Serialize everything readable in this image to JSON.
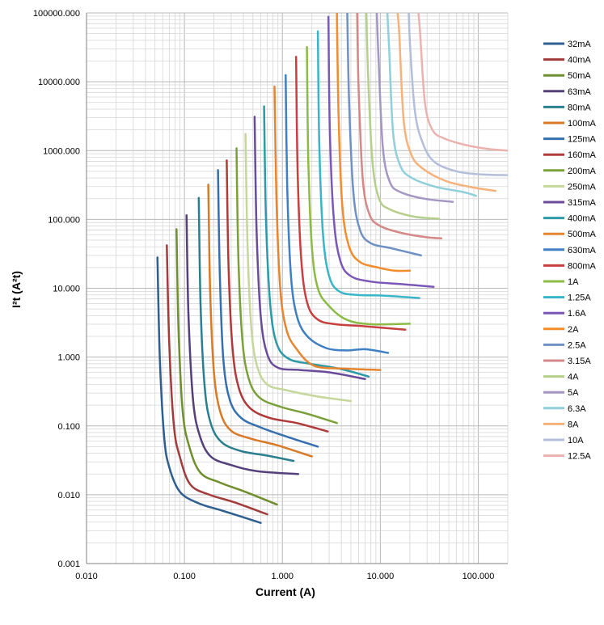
{
  "chart_data": {
    "type": "line",
    "xlabel": "Current (A)",
    "ylabel": "I²t (A²t)",
    "x_scale": "log",
    "y_scale": "log",
    "xlim": [
      0.01,
      200
    ],
    "ylim": [
      0.001,
      100000
    ],
    "x_ticks": [
      "0.010",
      "0.100",
      "1.000",
      "10.000",
      "100.000"
    ],
    "y_ticks": [
      "0.001",
      "0.010",
      "0.100",
      "1.000",
      "10.000",
      "100.000",
      "1000.000",
      "10000.000",
      "100000.000"
    ],
    "grid": true,
    "legend_position": "right",
    "series": [
      {
        "name": "32mA",
        "color": "#2f5f8f",
        "points": [
          [
            0.053,
            28
          ],
          [
            0.056,
            1.0
          ],
          [
            0.062,
            0.07
          ],
          [
            0.07,
            0.025
          ],
          [
            0.09,
            0.011
          ],
          [
            0.14,
            0.0075
          ],
          [
            0.25,
            0.0058
          ],
          [
            0.6,
            0.0039
          ]
        ]
      },
      {
        "name": "40mA",
        "color": "#a23b3b",
        "points": [
          [
            0.066,
            42
          ],
          [
            0.07,
            1.5
          ],
          [
            0.078,
            0.1
          ],
          [
            0.09,
            0.035
          ],
          [
            0.115,
            0.014
          ],
          [
            0.18,
            0.01
          ],
          [
            0.32,
            0.0078
          ],
          [
            0.7,
            0.0052
          ]
        ]
      },
      {
        "name": "50mA",
        "color": "#6f8f2f",
        "points": [
          [
            0.083,
            72
          ],
          [
            0.087,
            2.5
          ],
          [
            0.096,
            0.16
          ],
          [
            0.112,
            0.05
          ],
          [
            0.145,
            0.021
          ],
          [
            0.23,
            0.015
          ],
          [
            0.42,
            0.011
          ],
          [
            0.88,
            0.0072
          ]
        ]
      },
      {
        "name": "63mA",
        "color": "#54407a",
        "points": [
          [
            0.105,
            115
          ],
          [
            0.11,
            4
          ],
          [
            0.122,
            0.25
          ],
          [
            0.142,
            0.075
          ],
          [
            0.185,
            0.036
          ],
          [
            0.3,
            0.027
          ],
          [
            0.55,
            0.022
          ],
          [
            1.45,
            0.02
          ]
        ]
      },
      {
        "name": "80mA",
        "color": "#2a7f8f",
        "points": [
          [
            0.14,
            205
          ],
          [
            0.146,
            6
          ],
          [
            0.16,
            0.4
          ],
          [
            0.185,
            0.11
          ],
          [
            0.24,
            0.058
          ],
          [
            0.38,
            0.043
          ],
          [
            0.7,
            0.037
          ],
          [
            1.3,
            0.031
          ]
        ]
      },
      {
        "name": "100mA",
        "color": "#d97a26",
        "points": [
          [
            0.175,
            320
          ],
          [
            0.183,
            9
          ],
          [
            0.2,
            0.6
          ],
          [
            0.232,
            0.16
          ],
          [
            0.3,
            0.085
          ],
          [
            0.48,
            0.065
          ],
          [
            0.9,
            0.052
          ],
          [
            2.0,
            0.036
          ]
        ]
      },
      {
        "name": "125mA",
        "color": "#356fb0",
        "points": [
          [
            0.22,
            520
          ],
          [
            0.23,
            14
          ],
          [
            0.25,
            0.9
          ],
          [
            0.29,
            0.24
          ],
          [
            0.38,
            0.13
          ],
          [
            0.6,
            0.095
          ],
          [
            1.1,
            0.07
          ],
          [
            2.3,
            0.05
          ]
        ]
      },
      {
        "name": "160mA",
        "color": "#b03a3a",
        "points": [
          [
            0.27,
            720
          ],
          [
            0.282,
            20
          ],
          [
            0.31,
            1.3
          ],
          [
            0.36,
            0.35
          ],
          [
            0.47,
            0.18
          ],
          [
            0.75,
            0.13
          ],
          [
            1.4,
            0.11
          ],
          [
            2.9,
            0.083
          ]
        ]
      },
      {
        "name": "200mA",
        "color": "#7aa03a",
        "points": [
          [
            0.34,
            1080
          ],
          [
            0.355,
            28
          ],
          [
            0.39,
            1.8
          ],
          [
            0.45,
            0.5
          ],
          [
            0.58,
            0.26
          ],
          [
            0.95,
            0.19
          ],
          [
            1.8,
            0.15
          ],
          [
            3.6,
            0.11
          ]
        ]
      },
      {
        "name": "250mA",
        "color": "#c5d79a",
        "points": [
          [
            0.42,
            1750
          ],
          [
            0.44,
            45
          ],
          [
            0.48,
            2.8
          ],
          [
            0.55,
            0.75
          ],
          [
            0.7,
            0.4
          ],
          [
            1.1,
            0.33
          ],
          [
            2.2,
            0.27
          ],
          [
            5.0,
            0.23
          ]
        ]
      },
      {
        "name": "315mA",
        "color": "#6a4b9a",
        "points": [
          [
            0.52,
            3100
          ],
          [
            0.545,
            70
          ],
          [
            0.6,
            4
          ],
          [
            0.7,
            1.1
          ],
          [
            0.9,
            0.7
          ],
          [
            1.5,
            0.65
          ],
          [
            3.0,
            0.6
          ],
          [
            7.0,
            0.48
          ]
        ]
      },
      {
        "name": "400mA",
        "color": "#2e9aa8",
        "points": [
          [
            0.65,
            4400
          ],
          [
            0.68,
            100
          ],
          [
            0.75,
            6
          ],
          [
            0.87,
            1.6
          ],
          [
            1.15,
            0.95
          ],
          [
            1.9,
            0.8
          ],
          [
            3.8,
            0.68
          ],
          [
            7.6,
            0.52
          ]
        ]
      },
      {
        "name": "500mA",
        "color": "#e5852f",
        "points": [
          [
            0.83,
            8500
          ],
          [
            0.87,
            200
          ],
          [
            0.95,
            10
          ],
          [
            1.1,
            2.5
          ],
          [
            1.4,
            1.3
          ],
          [
            2.1,
            0.75
          ],
          [
            4.3,
            0.68
          ],
          [
            10,
            0.65
          ]
        ]
      },
      {
        "name": "630mA",
        "color": "#3f7fc4",
        "points": [
          [
            1.08,
            12500
          ],
          [
            1.12,
            300
          ],
          [
            1.22,
            16
          ],
          [
            1.4,
            4
          ],
          [
            1.8,
            2.0
          ],
          [
            2.8,
            1.35
          ],
          [
            4.5,
            1.25
          ],
          [
            7,
            1.3
          ],
          [
            12,
            1.15
          ]
        ]
      },
      {
        "name": "800mA",
        "color": "#c73f3f",
        "points": [
          [
            1.38,
            23000
          ],
          [
            1.43,
            500
          ],
          [
            1.56,
            25
          ],
          [
            1.8,
            6
          ],
          [
            2.3,
            3.5
          ],
          [
            3.5,
            3.0
          ],
          [
            7.0,
            2.8
          ],
          [
            18,
            2.5
          ]
        ]
      },
      {
        "name": "1A",
        "color": "#8bbb44",
        "points": [
          [
            1.78,
            32000
          ],
          [
            1.84,
            700
          ],
          [
            2.0,
            40
          ],
          [
            2.3,
            10
          ],
          [
            3.0,
            5.5
          ],
          [
            4.5,
            3.5
          ],
          [
            8.0,
            3.0
          ],
          [
            20,
            3.05
          ]
        ]
      },
      {
        "name": "1.25A",
        "color": "#3ab5c8",
        "points": [
          [
            2.3,
            54000
          ],
          [
            2.38,
            1200
          ],
          [
            2.6,
            60
          ],
          [
            3.0,
            15
          ],
          [
            3.8,
            9
          ],
          [
            5.8,
            8
          ],
          [
            11,
            7.8
          ],
          [
            25,
            7.2
          ]
        ]
      },
      {
        "name": "1.6A",
        "color": "#7b57b8",
        "points": [
          [
            2.95,
            88000
          ],
          [
            3.05,
            2000
          ],
          [
            3.35,
            100
          ],
          [
            3.9,
            25
          ],
          [
            5.0,
            15
          ],
          [
            8.0,
            12.5
          ],
          [
            16,
            11.5
          ],
          [
            35,
            10.5
          ]
        ]
      },
      {
        "name": "2A",
        "color": "#f28c2c",
        "points": [
          [
            3.6,
            100000
          ],
          [
            3.75,
            3000
          ],
          [
            4.1,
            150
          ],
          [
            4.8,
            40
          ],
          [
            6.2,
            24
          ],
          [
            9.5,
            20
          ],
          [
            14,
            18
          ],
          [
            20,
            18
          ]
        ]
      },
      {
        "name": "2.5A",
        "color": "#6f91c4",
        "points": [
          [
            4.6,
            100000
          ],
          [
            4.8,
            5000
          ],
          [
            5.3,
            250
          ],
          [
            6.2,
            70
          ],
          [
            8.0,
            45
          ],
          [
            13,
            38
          ],
          [
            26,
            30
          ]
        ]
      },
      {
        "name": "3.15A",
        "color": "#d48888",
        "points": [
          [
            5.8,
            100000
          ],
          [
            6.0,
            8000
          ],
          [
            6.6,
            400
          ],
          [
            7.7,
            120
          ],
          [
            10,
            80
          ],
          [
            17,
            63
          ],
          [
            30,
            55
          ],
          [
            42,
            53
          ]
        ]
      },
      {
        "name": "4A",
        "color": "#b5cf8b",
        "points": [
          [
            7.2,
            100000
          ],
          [
            7.5,
            12000
          ],
          [
            8.3,
            700
          ],
          [
            9.7,
            200
          ],
          [
            12.5,
            140
          ],
          [
            22,
            110
          ],
          [
            40,
            102
          ]
        ]
      },
      {
        "name": "5A",
        "color": "#a596c4",
        "points": [
          [
            9.2,
            100000
          ],
          [
            9.6,
            20000
          ],
          [
            10.6,
            1100
          ],
          [
            12.5,
            350
          ],
          [
            16,
            250
          ],
          [
            28,
            200
          ],
          [
            55,
            180
          ]
        ]
      },
      {
        "name": "6.3A",
        "color": "#8fd0da",
        "points": [
          [
            11.8,
            100000
          ],
          [
            12.3,
            30000
          ],
          [
            13.5,
            1800
          ],
          [
            16,
            600
          ],
          [
            21,
            400
          ],
          [
            36,
            300
          ],
          [
            70,
            250
          ],
          [
            95,
            220
          ]
        ]
      },
      {
        "name": "8A",
        "color": "#f5b27a",
        "points": [
          [
            15,
            100000
          ],
          [
            15.6,
            50000
          ],
          [
            17.3,
            2800
          ],
          [
            20.5,
            900
          ],
          [
            27,
            550
          ],
          [
            47,
            360
          ],
          [
            90,
            290
          ],
          [
            150,
            260
          ]
        ]
      },
      {
        "name": "10A",
        "color": "#b3bfda",
        "points": [
          [
            19.5,
            100000
          ],
          [
            20.2,
            30000
          ],
          [
            22.5,
            3800
          ],
          [
            26.5,
            1400
          ],
          [
            35,
            700
          ],
          [
            60,
            500
          ],
          [
            110,
            450
          ],
          [
            200,
            440
          ]
        ]
      },
      {
        "name": "12.5A",
        "color": "#ebb2ae",
        "points": [
          [
            24.5,
            100000
          ],
          [
            25.5,
            50000
          ],
          [
            28.5,
            5000
          ],
          [
            34,
            2000
          ],
          [
            45,
            1500
          ],
          [
            75,
            1200
          ],
          [
            130,
            1050
          ],
          [
            200,
            1000
          ]
        ]
      }
    ]
  }
}
